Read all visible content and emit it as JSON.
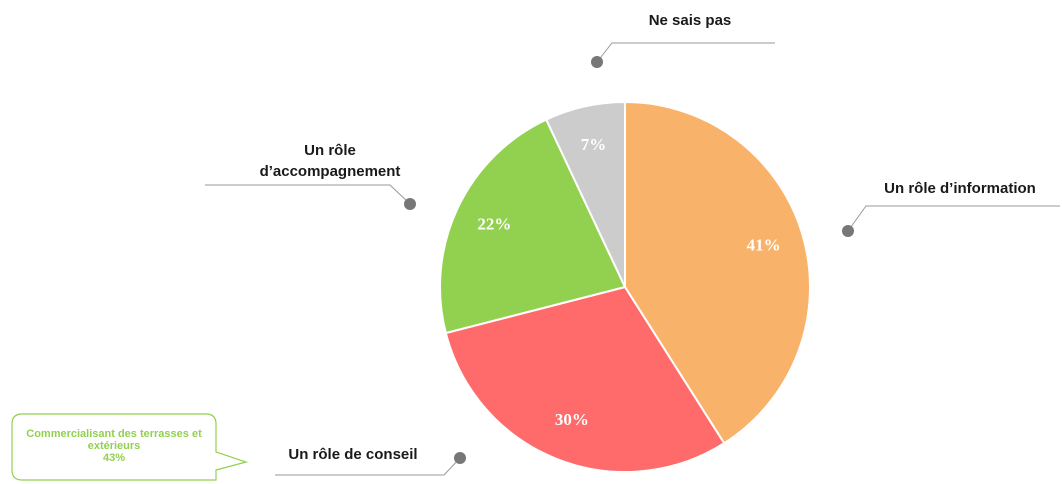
{
  "chart_data": {
    "type": "pie",
    "categories": [
      "Un rôle d’information",
      "Un rôle de conseil",
      "Un rôle d’accompagnement",
      "Ne sais pas"
    ],
    "values": [
      41,
      30,
      22,
      7
    ],
    "value_labels": [
      "41%",
      "30%",
      "22%",
      "7%"
    ],
    "colors": [
      "#F8B26A",
      "#FF6B6B",
      "#92D050",
      "#CCCCCC"
    ],
    "annotation": {
      "text": "Commercialisant des terrasses et extérieurs",
      "value": "43%"
    }
  }
}
